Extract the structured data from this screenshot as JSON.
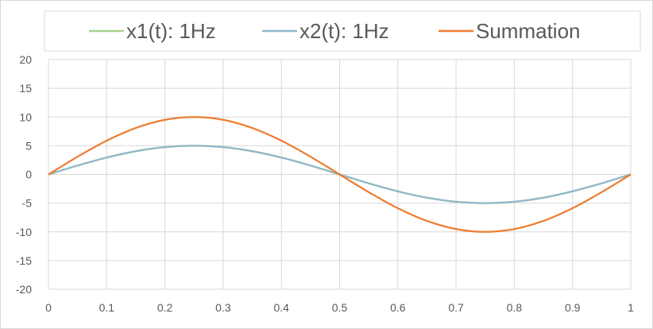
{
  "chart_data": {
    "type": "line",
    "title": "",
    "xlabel": "",
    "ylabel": "",
    "xlim": [
      0,
      1
    ],
    "ylim": [
      -20,
      20
    ],
    "x_ticks": [
      "0",
      "0.1",
      "0.2",
      "0.3",
      "0.4",
      "0.5",
      "0.6",
      "0.7",
      "0.8",
      "0.9",
      "1"
    ],
    "y_ticks": [
      "20",
      "15",
      "10",
      "5",
      "0",
      "-5",
      "-10",
      "-15",
      "-20"
    ],
    "grid": true,
    "legend_position": "top",
    "x": [
      0,
      0.05,
      0.1,
      0.15,
      0.2,
      0.25,
      0.3,
      0.35,
      0.4,
      0.45,
      0.5,
      0.55,
      0.6,
      0.65,
      0.7,
      0.75,
      0.8,
      0.85,
      0.9,
      0.95,
      1
    ],
    "series": [
      {
        "name": "x1(t): 1Hz",
        "color": "#a9d18e",
        "values": [
          0,
          1.55,
          2.94,
          4.05,
          4.76,
          5,
          4.76,
          4.05,
          2.94,
          1.55,
          0,
          -1.55,
          -2.94,
          -4.05,
          -4.76,
          -5,
          -4.76,
          -4.05,
          -2.94,
          -1.55,
          0
        ]
      },
      {
        "name": "x2(t): 1Hz",
        "color": "#8fb8c9",
        "values": [
          0,
          1.55,
          2.94,
          4.05,
          4.76,
          5,
          4.76,
          4.05,
          2.94,
          1.55,
          0,
          -1.55,
          -2.94,
          -4.05,
          -4.76,
          -5,
          -4.76,
          -4.05,
          -2.94,
          -1.55,
          0
        ]
      },
      {
        "name": "Summation",
        "color": "#ed7d31",
        "values": [
          0,
          3.09,
          5.88,
          8.09,
          9.51,
          10,
          9.51,
          8.09,
          5.88,
          3.09,
          0,
          -3.09,
          -5.88,
          -8.09,
          -9.51,
          -10,
          -9.51,
          -8.09,
          -5.88,
          -3.09,
          0
        ]
      }
    ]
  }
}
